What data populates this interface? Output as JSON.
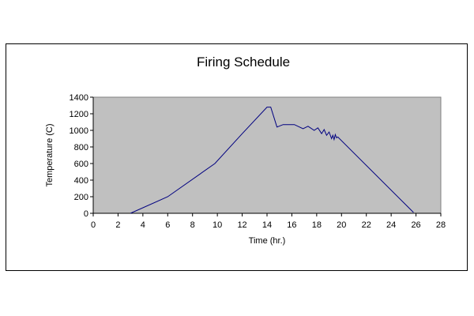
{
  "chart_data": {
    "type": "line",
    "title": "Firing Schedule",
    "xlabel": "Time (hr.)",
    "ylabel": "Temperature (C)",
    "xlim": [
      0,
      28
    ],
    "ylim": [
      0,
      1400
    ],
    "x_ticks": [
      0,
      2,
      4,
      6,
      8,
      10,
      12,
      14,
      16,
      18,
      20,
      22,
      24,
      26,
      28
    ],
    "y_ticks": [
      0,
      200,
      400,
      600,
      800,
      1000,
      1200,
      1400
    ],
    "grid": false,
    "legend": "none",
    "colors": {
      "plot_bg": "#c0c0c0",
      "line": "#000080"
    },
    "series": [
      {
        "x": [
          3.0,
          6.0,
          9.8,
          12.0,
          14.0,
          14.3,
          14.8,
          15.3,
          16.2,
          16.9,
          17.3,
          17.8,
          18.1,
          18.4,
          18.6,
          18.8,
          19.0,
          19.2,
          19.3,
          19.4,
          19.5,
          19.6,
          19.7,
          25.8
        ],
        "y": [
          0,
          200,
          600,
          960,
          1280,
          1280,
          1040,
          1070,
          1070,
          1020,
          1050,
          1000,
          1030,
          960,
          1010,
          940,
          980,
          900,
          940,
          890,
          950,
          910,
          920,
          10
        ]
      }
    ]
  }
}
